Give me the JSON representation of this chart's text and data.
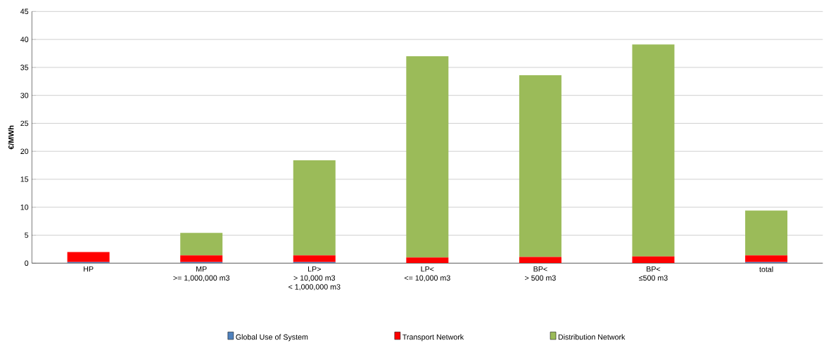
{
  "chart_data": {
    "type": "bar",
    "stacked": true,
    "ylabel": "€/MWh",
    "categories": [
      "HP",
      "MP\n>= 1,000,000 m3",
      "LP>\n> 10,000 m3\n< 1,000,000 m3",
      "LP<\n<= 10,000 m3",
      "BP<\n> 500 m3",
      "BP<\n≤500 m3",
      "total"
    ],
    "series": [
      {
        "name": "Global Use of System",
        "color": "#4f81bd",
        "values": [
          0.2,
          0.2,
          0.2,
          null,
          null,
          null,
          0.2
        ]
      },
      {
        "name": "Transport Network",
        "color": "#ff0000",
        "values": [
          1.8,
          1.2,
          1.2,
          1.0,
          1.1,
          1.2,
          1.2
        ]
      },
      {
        "name": "Distribution Network",
        "color": "#9bbb59",
        "values": [
          null,
          4.0,
          17,
          36,
          32.5,
          37.9,
          8
        ]
      }
    ],
    "ylim": [
      0,
      45
    ],
    "yticks": [
      0,
      5,
      10,
      15,
      20,
      25,
      30,
      35,
      40,
      45
    ],
    "grid": "y",
    "legend": "bottom"
  }
}
